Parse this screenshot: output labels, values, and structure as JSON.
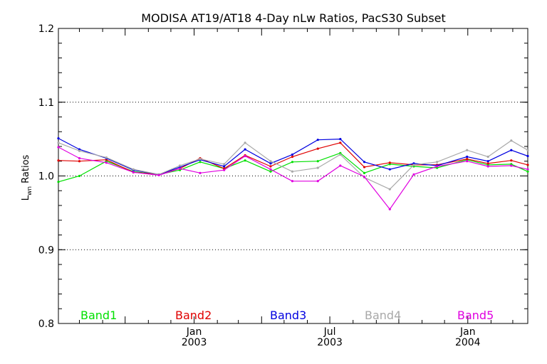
{
  "chart_data": {
    "type": "line",
    "title": "MODISA AT19/AT18 4-Day nLw Ratios, PacS30 Subset",
    "ylabel_main": "L",
    "ylabel_sub": "wn",
    "ylabel_rest": " Ratios",
    "ylim": [
      0.8,
      1.2
    ],
    "yticks": [
      0.8,
      0.9,
      1.0,
      1.1,
      1.2
    ],
    "ytick_labels": [
      "0.8",
      "0.9",
      "1.0",
      "1.1",
      "1.2"
    ],
    "dotted_gridlines": [
      0.9,
      1.0,
      1.1
    ],
    "xlim": [
      "2002-07-04",
      "2004-03-21"
    ],
    "xticks": [
      {
        "date": "2003-01-01",
        "line1": "Jan",
        "line2": "2003"
      },
      {
        "date": "2003-07-01",
        "line1": "Jul",
        "line2": "2003"
      },
      {
        "date": "2004-01-01",
        "line1": "Jan",
        "line2": "2004"
      }
    ],
    "x": [
      "2002-07-04",
      "2002-08-01",
      "2002-09-06",
      "2002-10-12",
      "2002-11-15",
      "2002-12-13",
      "2003-01-09",
      "2003-02-10",
      "2003-03-10",
      "2003-04-13",
      "2003-05-12",
      "2003-06-15",
      "2003-07-15",
      "2003-08-16",
      "2003-09-19",
      "2003-10-21",
      "2003-11-21",
      "2003-12-31",
      "2004-01-28",
      "2004-02-28",
      "2004-03-21"
    ],
    "series": [
      {
        "name": "Band1",
        "color": "#00e000",
        "values": [
          0.992,
          1.0,
          1.02,
          1.006,
          1.002,
          1.008,
          1.019,
          1.01,
          1.021,
          1.006,
          1.019,
          1.02,
          1.031,
          1.004,
          1.016,
          1.013,
          1.011,
          1.022,
          1.015,
          1.016,
          1.006
        ]
      },
      {
        "name": "Band2",
        "color": "#e00000",
        "values": [
          1.021,
          1.02,
          1.022,
          1.005,
          1.002,
          1.01,
          1.024,
          1.01,
          1.028,
          1.013,
          1.026,
          1.037,
          1.045,
          1.012,
          1.018,
          1.015,
          1.015,
          1.023,
          1.017,
          1.021,
          1.015
        ]
      },
      {
        "name": "Band3",
        "color": "#0000e0",
        "values": [
          1.051,
          1.036,
          1.024,
          1.008,
          1.002,
          1.012,
          1.022,
          1.013,
          1.036,
          1.017,
          1.029,
          1.049,
          1.05,
          1.019,
          1.009,
          1.017,
          1.014,
          1.026,
          1.02,
          1.035,
          1.027
        ]
      },
      {
        "name": "Band4",
        "color": "#a8a8a8",
        "values": [
          1.045,
          1.034,
          1.025,
          1.009,
          1.002,
          1.014,
          1.023,
          1.016,
          1.045,
          1.02,
          1.006,
          1.011,
          1.029,
          0.998,
          0.982,
          1.015,
          1.019,
          1.035,
          1.026,
          1.048,
          1.035
        ]
      },
      {
        "name": "Band5",
        "color": "#e000e0",
        "values": [
          1.039,
          1.024,
          1.018,
          1.005,
          1.001,
          1.01,
          1.004,
          1.008,
          1.027,
          1.009,
          0.993,
          0.993,
          1.014,
          0.999,
          0.955,
          1.002,
          1.013,
          1.02,
          1.013,
          1.014,
          1.009
        ]
      }
    ],
    "legend_placement": "bottom"
  }
}
